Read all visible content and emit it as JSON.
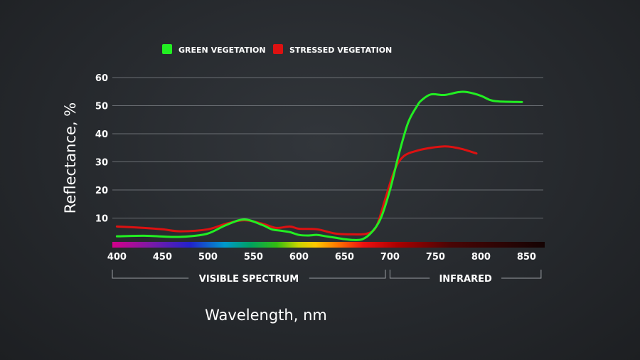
{
  "chart_data": {
    "type": "line",
    "xlabel": "Wavelength, nm",
    "ylabel": "Reflectance, %",
    "xlim": [
      395,
      870
    ],
    "ylim": [
      0,
      60
    ],
    "x_ticks": [
      400,
      450,
      500,
      550,
      600,
      650,
      700,
      750,
      800,
      850
    ],
    "y_ticks": [
      10,
      20,
      30,
      40,
      50,
      60
    ],
    "grid": true,
    "legend_position": "top-left",
    "regions": [
      {
        "label": "VISIBLE SPECTRUM",
        "from": 395,
        "to": 695
      },
      {
        "label": "INFRARED",
        "from": 700,
        "to": 866
      }
    ],
    "series": [
      {
        "name": "GREEN VEGETATION",
        "color": "#22ee22",
        "x": [
          400,
          430,
          460,
          480,
          500,
          520,
          540,
          560,
          570,
          580,
          590,
          600,
          610,
          620,
          630,
          640,
          650,
          660,
          670,
          680,
          690,
          700,
          710,
          720,
          730,
          735,
          745,
          760,
          775,
          785,
          800,
          810,
          820,
          845
        ],
        "y": [
          3.5,
          3.7,
          3.3,
          3.5,
          4.5,
          7.5,
          9.5,
          7.5,
          6,
          5.5,
          5,
          4,
          3.8,
          4,
          3.5,
          3,
          2.5,
          2.2,
          2.5,
          5,
          10,
          20,
          33,
          44,
          50,
          52,
          54,
          53.8,
          54.8,
          54.8,
          53.5,
          52,
          51.5,
          51.3
        ]
      },
      {
        "name": "STRESSED VEGETATION",
        "color": "#dd1111",
        "x": [
          400,
          430,
          450,
          470,
          500,
          520,
          540,
          560,
          575,
          590,
          600,
          620,
          640,
          660,
          675,
          685,
          695,
          705,
          715,
          730,
          745,
          760,
          770,
          780,
          795
        ],
        "y": [
          7,
          6.5,
          6,
          5.3,
          6,
          8,
          9.2,
          8,
          6.5,
          7,
          6.2,
          6,
          4.5,
          4.2,
          4.5,
          7,
          17,
          27,
          32,
          34,
          35,
          35.5,
          35.2,
          34.5,
          33
        ]
      }
    ]
  }
}
